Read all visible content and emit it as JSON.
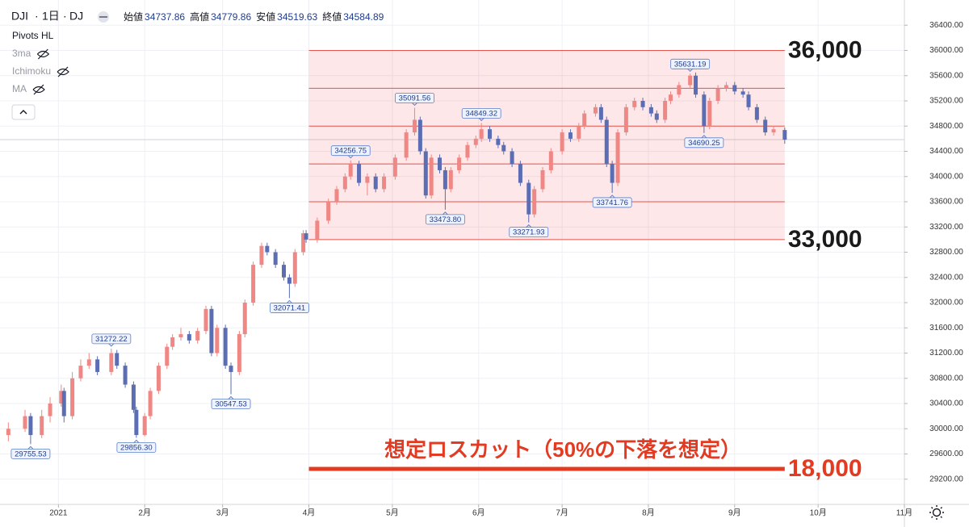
{
  "chart_data": {
    "type": "candlestick",
    "symbol": "DJI",
    "interval": "1日",
    "exchange": "DJ",
    "ohlc_legend": [
      {
        "label": "始値",
        "value": 34737.86
      },
      {
        "label": "高値",
        "value": 34779.86
      },
      {
        "label": "安値",
        "value": 34519.63
      },
      {
        "label": "終値",
        "value": 34584.89
      }
    ],
    "indicators": [
      "Pivots HL",
      "3ma",
      "Ichimoku",
      "MA"
    ],
    "up_color": "#ef8784",
    "down_color": "#5b6db3",
    "xlim": [
      -21,
      304
    ],
    "xticks": [
      {
        "value": 0,
        "label": "2021"
      },
      {
        "value": 31,
        "label": "2月"
      },
      {
        "value": 59,
        "label": "3月"
      },
      {
        "value": 90,
        "label": "4月"
      },
      {
        "value": 120,
        "label": "5月"
      },
      {
        "value": 151,
        "label": "6月"
      },
      {
        "value": 181,
        "label": "7月"
      },
      {
        "value": 212,
        "label": "8月"
      },
      {
        "value": 243,
        "label": "9月"
      },
      {
        "value": 273,
        "label": "10月"
      },
      {
        "value": 304,
        "label": "11月"
      }
    ],
    "ylim": [
      28800,
      36800
    ],
    "yticks": [
      {
        "value": 29200,
        "label": "29200.00"
      },
      {
        "value": 29600,
        "label": "29600.00"
      },
      {
        "value": 30000,
        "label": "30000.00"
      },
      {
        "value": 30400,
        "label": "30400.00"
      },
      {
        "value": 30800,
        "label": "30800.00"
      },
      {
        "value": 31200,
        "label": "31200.00"
      },
      {
        "value": 31600,
        "label": "31600.00"
      },
      {
        "value": 32000,
        "label": "32000.00"
      },
      {
        "value": 32400,
        "label": "32400.00"
      },
      {
        "value": 32800,
        "label": "32800.00"
      },
      {
        "value": 33200,
        "label": "33200.00"
      },
      {
        "value": 33600,
        "label": "33600.00"
      },
      {
        "value": 34000,
        "label": "34000.00"
      },
      {
        "value": 34400,
        "label": "34400.00"
      },
      {
        "value": 34800,
        "label": "34800.00"
      },
      {
        "value": 35200,
        "label": "35200.00"
      },
      {
        "value": 35600,
        "label": "35600.00"
      },
      {
        "value": 36000,
        "label": "36000.00"
      },
      {
        "value": 36400,
        "label": "36400.00"
      }
    ],
    "grid": true,
    "candles": [
      [
        -18,
        29900,
        30100,
        29800,
        30000
      ],
      [
        -12,
        30000,
        30300,
        29950,
        30200
      ],
      [
        -10,
        30200,
        30250,
        29755.53,
        29900
      ],
      [
        -6,
        29900,
        30300,
        29850,
        30200
      ],
      [
        -3,
        30200,
        30500,
        30100,
        30400
      ],
      [
        1,
        30400,
        30700,
        30350,
        30600
      ],
      [
        2,
        30600,
        30650,
        30100,
        30200
      ],
      [
        5,
        30200,
        30900,
        30150,
        30800
      ],
      [
        8,
        30800,
        31100,
        30750,
        31000
      ],
      [
        11,
        31000,
        31200,
        30950,
        31100
      ],
      [
        14,
        31100,
        31150,
        30850,
        30900
      ],
      [
        19,
        30900,
        31272.22,
        30850,
        31200
      ],
      [
        21,
        31200,
        31250,
        30950,
        31000
      ],
      [
        24,
        31000,
        31050,
        30650,
        30700
      ],
      [
        27,
        30700,
        30750,
        30250,
        30300
      ],
      [
        28,
        30300,
        30350,
        29856.3,
        29900
      ],
      [
        31,
        29900,
        30250,
        29880,
        30200
      ],
      [
        33,
        30200,
        30650,
        30150,
        30600
      ],
      [
        36,
        30600,
        31050,
        30550,
        31000
      ],
      [
        39,
        31000,
        31350,
        30950,
        31300
      ],
      [
        41,
        31300,
        31500,
        31250,
        31450
      ],
      [
        44,
        31450,
        31600,
        31400,
        31500
      ],
      [
        47,
        31500,
        31550,
        31350,
        31400
      ],
      [
        50,
        31400,
        31600,
        31350,
        31550
      ],
      [
        53,
        31550,
        31950,
        31500,
        31900
      ],
      [
        55,
        31900,
        31950,
        31150,
        31200
      ],
      [
        57,
        31200,
        31650,
        31150,
        31600
      ],
      [
        60,
        31600,
        31650,
        30950,
        31000
      ],
      [
        62,
        31000,
        31050,
        30547.53,
        30900
      ],
      [
        65,
        30900,
        31550,
        30850,
        31500
      ],
      [
        67,
        31500,
        32050,
        31450,
        32000
      ],
      [
        70,
        32000,
        32650,
        31950,
        32600
      ],
      [
        73,
        32600,
        32950,
        32550,
        32900
      ],
      [
        75,
        32900,
        32950,
        32750,
        32800
      ],
      [
        78,
        32800,
        32850,
        32550,
        32600
      ],
      [
        81,
        32600,
        32650,
        32350,
        32400
      ],
      [
        83,
        32400,
        32450,
        32071.41,
        32300
      ],
      [
        85,
        32300,
        32850,
        32250,
        32800
      ],
      [
        88,
        32800,
        33150,
        32750,
        33100
      ],
      [
        89,
        33100,
        33150,
        32950,
        33000
      ],
      [
        93,
        33000,
        33350,
        32950,
        33300
      ],
      [
        97,
        33300,
        33650,
        33250,
        33600
      ],
      [
        100,
        33600,
        33850,
        33550,
        33800
      ],
      [
        103,
        33800,
        34050,
        33750,
        34000
      ],
      [
        105,
        34000,
        34256.75,
        33950,
        34200
      ],
      [
        108,
        34200,
        34250,
        33850,
        33900
      ],
      [
        111,
        33900,
        34050,
        33700,
        34000
      ],
      [
        114,
        34000,
        34050,
        33750,
        33800
      ],
      [
        117,
        33800,
        34050,
        33750,
        34000
      ],
      [
        121,
        34000,
        34350,
        33950,
        34300
      ],
      [
        125,
        34300,
        34750,
        34250,
        34700
      ],
      [
        128,
        34700,
        35091.56,
        34650,
        34900
      ],
      [
        130,
        34900,
        34950,
        34350,
        34400
      ],
      [
        132,
        34400,
        34450,
        33650,
        33700
      ],
      [
        134,
        33700,
        34350,
        33650,
        34300
      ],
      [
        137,
        34300,
        34350,
        34050,
        34100
      ],
      [
        139,
        34100,
        34150,
        33473.8,
        33800
      ],
      [
        141,
        33800,
        34150,
        33750,
        34100
      ],
      [
        144,
        34100,
        34350,
        34050,
        34300
      ],
      [
        147,
        34300,
        34550,
        34250,
        34500
      ],
      [
        150,
        34500,
        34650,
        34450,
        34600
      ],
      [
        152,
        34600,
        34849.32,
        34550,
        34750
      ],
      [
        155,
        34750,
        34800,
        34550,
        34600
      ],
      [
        158,
        34600,
        34650,
        34450,
        34500
      ],
      [
        160,
        34500,
        34550,
        34350,
        34400
      ],
      [
        163,
        34400,
        34450,
        34150,
        34200
      ],
      [
        166,
        34200,
        34250,
        33850,
        33900
      ],
      [
        169,
        33900,
        33950,
        33271.93,
        33400
      ],
      [
        171,
        33400,
        33850,
        33350,
        33800
      ],
      [
        174,
        33800,
        34150,
        33750,
        34100
      ],
      [
        177,
        34100,
        34450,
        34050,
        34400
      ],
      [
        181,
        34400,
        34750,
        34350,
        34700
      ],
      [
        184,
        34700,
        34750,
        34550,
        34600
      ],
      [
        187,
        34600,
        34850,
        34550,
        34800
      ],
      [
        189,
        34800,
        35050,
        34750,
        35000
      ],
      [
        193,
        35000,
        35150,
        34950,
        35100
      ],
      [
        195,
        35100,
        35150,
        34850,
        34900
      ],
      [
        197,
        34900,
        34950,
        34150,
        34200
      ],
      [
        199,
        34200,
        34250,
        33741.76,
        33900
      ],
      [
        201,
        33900,
        34750,
        33850,
        34700
      ],
      [
        204,
        34700,
        35150,
        34650,
        35100
      ],
      [
        207,
        35100,
        35250,
        35050,
        35200
      ],
      [
        210,
        35200,
        35250,
        35050,
        35100
      ],
      [
        213,
        35100,
        35150,
        34950,
        35000
      ],
      [
        215,
        35000,
        35050,
        34850,
        34900
      ],
      [
        218,
        34900,
        35250,
        34850,
        35200
      ],
      [
        220,
        35200,
        35350,
        35150,
        35300
      ],
      [
        223,
        35300,
        35500,
        35250,
        35450
      ],
      [
        227,
        35450,
        35631.19,
        35400,
        35600
      ],
      [
        229,
        35600,
        35650,
        35250,
        35300
      ],
      [
        232,
        35300,
        35350,
        34690.25,
        34800
      ],
      [
        234,
        34800,
        35250,
        34750,
        35200
      ],
      [
        237,
        35200,
        35450,
        35150,
        35400
      ],
      [
        240,
        35400,
        35500,
        35350,
        35450
      ],
      [
        243,
        35450,
        35500,
        35300,
        35350
      ],
      [
        246,
        35350,
        35400,
        35250,
        35300
      ],
      [
        248,
        35300,
        35350,
        35050,
        35100
      ],
      [
        251,
        35100,
        35150,
        34850,
        34900
      ],
      [
        254,
        34900,
        34950,
        34650,
        34700
      ],
      [
        257,
        34700,
        34800,
        34650,
        34750
      ],
      [
        261,
        34737.86,
        34779.86,
        34519.63,
        34584.89
      ]
    ],
    "pivots": [
      {
        "x": -10,
        "value": 29755.53
      },
      {
        "x": 19,
        "value": 31272.22
      },
      {
        "x": 28,
        "value": 29856.3,
        "label": "29856.30"
      },
      {
        "x": 62,
        "value": 30547.53
      },
      {
        "x": 83,
        "value": 32071.41
      },
      {
        "x": 105,
        "value": 34256.75
      },
      {
        "x": 128,
        "value": 35091.56
      },
      {
        "x": 139,
        "value": 33473.8,
        "label": "33473.80"
      },
      {
        "x": 152,
        "value": 34849.32
      },
      {
        "x": 169,
        "value": 33271.93
      },
      {
        "x": 199,
        "value": 33741.76
      },
      {
        "x": 227,
        "value": 35631.19
      },
      {
        "x": 232,
        "value": 34690.25
      }
    ],
    "pivot_levels": {
      "start": 90,
      "end": 261,
      "values": [
        36000,
        35400,
        34800,
        34200,
        33600,
        33000
      ]
    },
    "level_labels": [
      {
        "value": 36000,
        "label": "36,000"
      },
      {
        "value": 33000,
        "label": "33,000"
      }
    ],
    "loss_cut": {
      "text": "想定ロスカット（50%の下落を想定）",
      "label": "18,000"
    }
  }
}
